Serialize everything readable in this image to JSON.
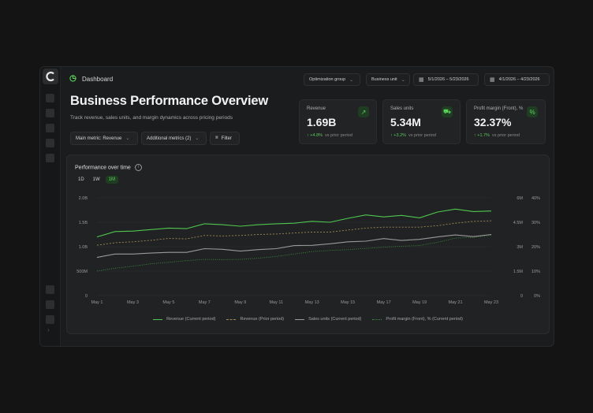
{
  "topbar": {
    "title": "Dashboard",
    "optimization_group": "Optimization group",
    "business_unit": "Business unit",
    "date_range_current": "5/1/2026 – 5/23/2026",
    "date_range_prior": "4/1/2026 – 4/23/2026"
  },
  "page": {
    "title": "Business Performance Overview",
    "subtitle": "Track revenue, sales units, and margin dynamics across pricing periods",
    "main_metric": "Main metric: Revenue",
    "additional_metrics": "Additional metrics (2)",
    "filter": "Filter"
  },
  "kpis": [
    {
      "label": "Revenue",
      "value": "1.69B",
      "change": "↑ +4.8%",
      "period": "vs prior period",
      "icon": "trending-up-icon"
    },
    {
      "label": "Sales units",
      "value": "5.34M",
      "change": "↑ +3.2%",
      "period": "vs prior period",
      "icon": "cart-icon"
    },
    {
      "label": "Profit margin (Front), %",
      "value": "32.37%",
      "change": "↑ +1.7%",
      "period": "vs prior period",
      "icon": "percent-icon"
    }
  ],
  "card": {
    "title": "Performance over time",
    "ranges": [
      "1D",
      "1W",
      "1M"
    ],
    "active_range": "1M"
  },
  "colors": {
    "revenue_current": "#4fc74f",
    "revenue_prior": "#a08a55",
    "units_current": "#9a9a9a",
    "margin_current": "#3f8f3f",
    "accent_bg": "#1f3d22"
  },
  "chart_data": {
    "type": "line",
    "x": [
      "May 1",
      "May 2",
      "May 3",
      "May 4",
      "May 5",
      "May 6",
      "May 7",
      "May 8",
      "May 9",
      "May 10",
      "May 11",
      "May 12",
      "May 13",
      "May 14",
      "May 15",
      "May 16",
      "May 17",
      "May 18",
      "May 19",
      "May 20",
      "May 21",
      "May 22",
      "May 23"
    ],
    "x_tick_labels": [
      "May 1",
      "May 3",
      "May 5",
      "May 7",
      "May 9",
      "May 11",
      "May 13",
      "May 15",
      "May 17",
      "May 19",
      "May 21",
      "May 23"
    ],
    "y_left_ticks": [
      "2.0B",
      "1.5B",
      "1.0B",
      "500M",
      "0"
    ],
    "y_left_range": [
      0,
      2000000000
    ],
    "y_right1_ticks": [
      "6M",
      "4.5M",
      "3M",
      "1.5M",
      "0"
    ],
    "y_right1_range": [
      0,
      6000000
    ],
    "y_right2_ticks": [
      "40%",
      "30%",
      "20%",
      "10%",
      "0%"
    ],
    "y_right2_range": [
      0,
      40
    ],
    "grid": true,
    "legend": "bottom",
    "series": [
      {
        "name": "Revenue",
        "period": "(Current period)",
        "axis": "left",
        "style": "solid",
        "color_key": "revenue_current",
        "values": [
          1200000000.0,
          1310000000.0,
          1320000000.0,
          1350000000.0,
          1380000000.0,
          1370000000.0,
          1470000000.0,
          1450000000.0,
          1420000000.0,
          1450000000.0,
          1470000000.0,
          1480000000.0,
          1520000000.0,
          1500000000.0,
          1580000000.0,
          1650000000.0,
          1610000000.0,
          1640000000.0,
          1590000000.0,
          1710000000.0,
          1770000000.0,
          1720000000.0,
          1730000000.0
        ]
      },
      {
        "name": "Revenue",
        "period": "(Prior period)",
        "axis": "left",
        "style": "dashed",
        "color_key": "revenue_prior",
        "values": [
          1030000000.0,
          1080000000.0,
          1100000000.0,
          1130000000.0,
          1170000000.0,
          1160000000.0,
          1230000000.0,
          1220000000.0,
          1230000000.0,
          1250000000.0,
          1260000000.0,
          1280000000.0,
          1300000000.0,
          1300000000.0,
          1340000000.0,
          1380000000.0,
          1400000000.0,
          1400000000.0,
          1400000000.0,
          1430000000.0,
          1480000000.0,
          1520000000.0,
          1530000000.0
        ]
      },
      {
        "name": "Sales units",
        "period": "(Current period)",
        "axis": "right1",
        "style": "solid",
        "color_key": "units_current",
        "values": [
          2340000.0,
          2550000.0,
          2550000.0,
          2610000.0,
          2650000.0,
          2650000.0,
          2880000.0,
          2840000.0,
          2730000.0,
          2820000.0,
          2880000.0,
          3070000.0,
          3080000.0,
          3180000.0,
          3300000.0,
          3340000.0,
          3500000.0,
          3380000.0,
          3450000.0,
          3600000.0,
          3720000.0,
          3620000.0,
          3750000.0
        ]
      },
      {
        "name": "Profit margin (Front), %",
        "period": "(Current period)",
        "axis": "right2",
        "style": "dotted",
        "color_key": "margin_current",
        "values": [
          10.0,
          11.2,
          12.0,
          13.0,
          13.6,
          14.3,
          14.8,
          14.7,
          14.8,
          15.3,
          16.0,
          17.0,
          18.0,
          18.5,
          18.8,
          19.3,
          19.8,
          20.2,
          20.5,
          21.8,
          23.5,
          23.8,
          24.7
        ]
      }
    ]
  }
}
